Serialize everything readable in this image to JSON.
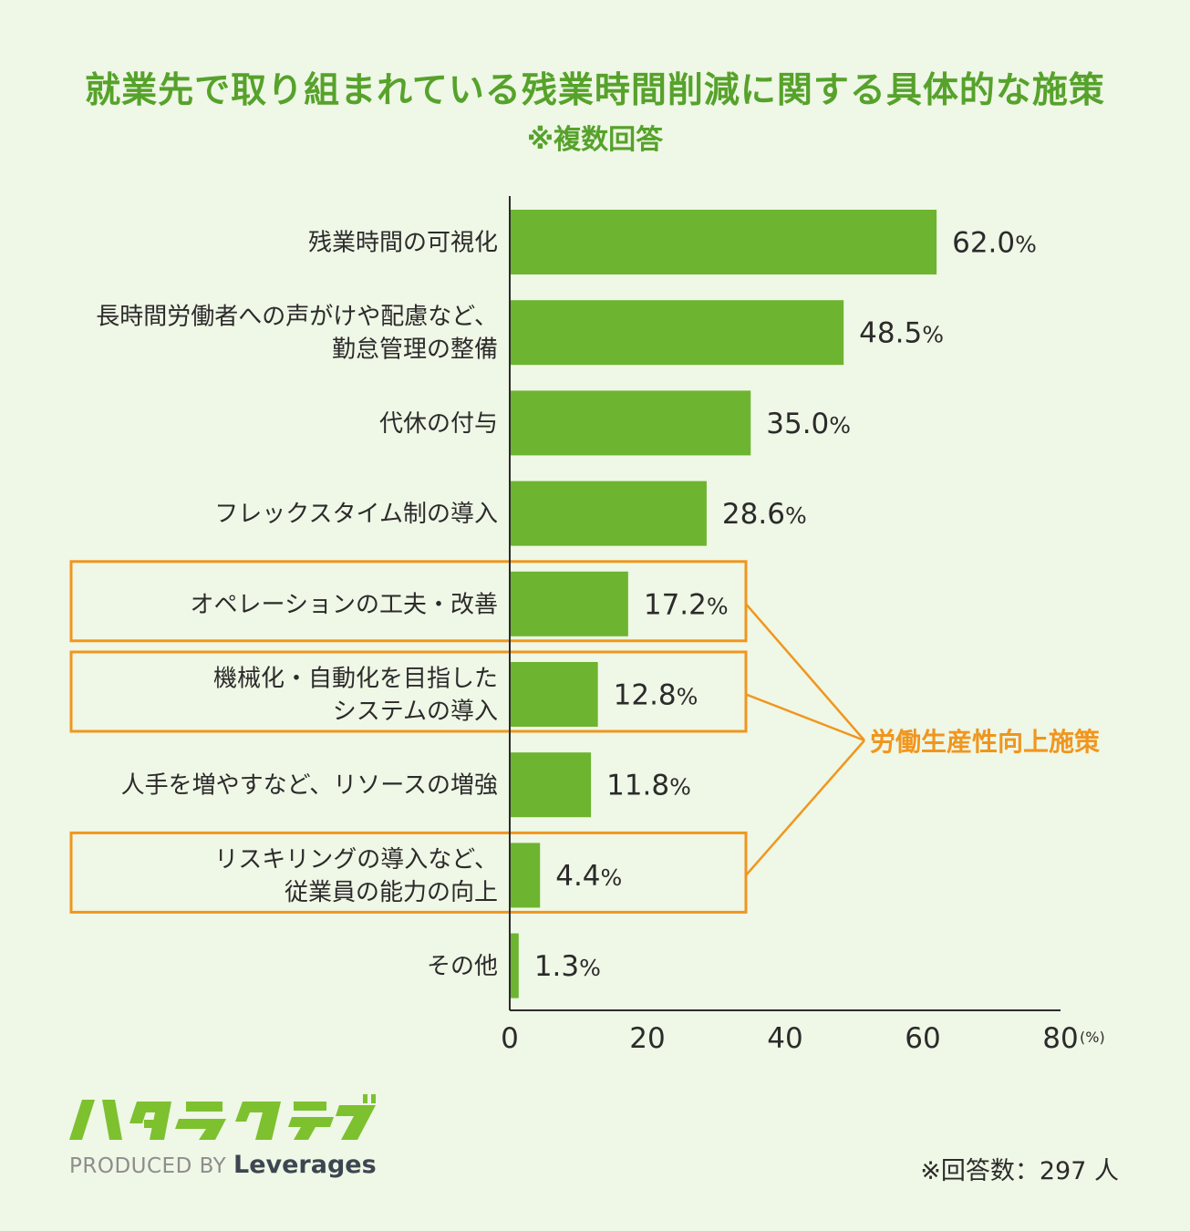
{
  "title": "就業先で取り組まれている残業時間削減に関する具体的な施策",
  "subtitle": "※複数回答",
  "chart_data": {
    "type": "bar",
    "orientation": "horizontal",
    "categories": [
      [
        "残業時間の可視化"
      ],
      [
        "長時間労働者への声がけや配慮など、",
        "勤怠管理の整備"
      ],
      [
        "代休の付与"
      ],
      [
        "フレックスタイム制の導入"
      ],
      [
        "オペレーションの工夫・改善"
      ],
      [
        "機械化・自動化を目指した",
        "システムの導入"
      ],
      [
        "人手を増やすなど、リソースの増強"
      ],
      [
        "リスキリングの導入など、",
        "従業員の能力の向上"
      ],
      [
        "その他"
      ]
    ],
    "values": [
      62.0,
      48.5,
      35.0,
      28.6,
      17.2,
      12.8,
      11.8,
      4.4,
      1.3
    ],
    "value_labels": [
      "62.0",
      "48.5",
      "35.0",
      "28.6",
      "17.2",
      "12.8",
      "11.8",
      "4.4",
      "1.3"
    ],
    "value_unit": "%",
    "xlim": [
      0,
      80
    ],
    "xticks": [
      "0",
      "20",
      "40",
      "60",
      "80"
    ],
    "xunit": "(%)",
    "bar_color": "#6db430",
    "highlight": {
      "label": "労働生産性向上施策",
      "items": [
        4,
        5,
        7
      ],
      "color": "#f0961e"
    },
    "grid": false
  },
  "logo": {
    "text": "ハタラクティブ",
    "color": "#7dc12f"
  },
  "produced_by": {
    "prefix": "PRODUCED BY",
    "brand": "Leverages"
  },
  "respondents": "※回答数：297 人"
}
